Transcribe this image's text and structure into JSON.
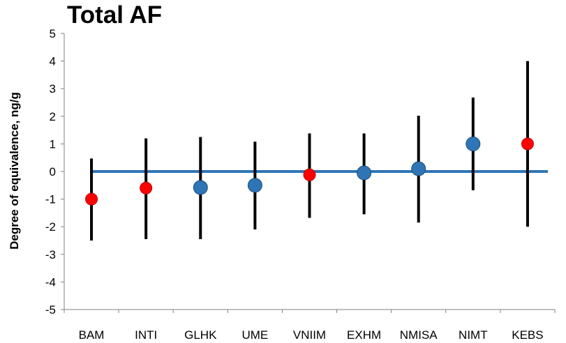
{
  "chart_data": {
    "type": "scatter",
    "title": "Total AF",
    "xlabel": "",
    "ylabel": "Degree of equivalence, ng/g",
    "ylim": [
      -5,
      5
    ],
    "yticks": [
      5,
      4,
      3,
      2,
      1,
      0,
      -1,
      -2,
      -3,
      -4,
      -5
    ],
    "grid": false,
    "categories": [
      "BAM",
      "INTI",
      "GLHK",
      "UME",
      "VNIIM",
      "EXHM",
      "NMISA",
      "NIMT",
      "KEBS"
    ],
    "values": [
      -1.0,
      -0.6,
      -0.58,
      -0.5,
      -0.12,
      -0.05,
      0.1,
      1.0,
      1.0
    ],
    "error_low": [
      -2.5,
      -2.45,
      -2.45,
      -2.1,
      -1.68,
      -1.55,
      -1.85,
      -0.68,
      -2.0
    ],
    "error_high": [
      0.47,
      1.2,
      1.25,
      1.08,
      1.38,
      1.38,
      2.02,
      2.68,
      4.0
    ],
    "point_colors": [
      "#ff0000",
      "#ff0000",
      "#2e75b6",
      "#2e75b6",
      "#ff0000",
      "#2e75b6",
      "#2e75b6",
      "#2e75b6",
      "#ff0000"
    ],
    "reference_line": {
      "value": 0,
      "color": "#2e75b6"
    },
    "errorbar_color": "#000000"
  }
}
